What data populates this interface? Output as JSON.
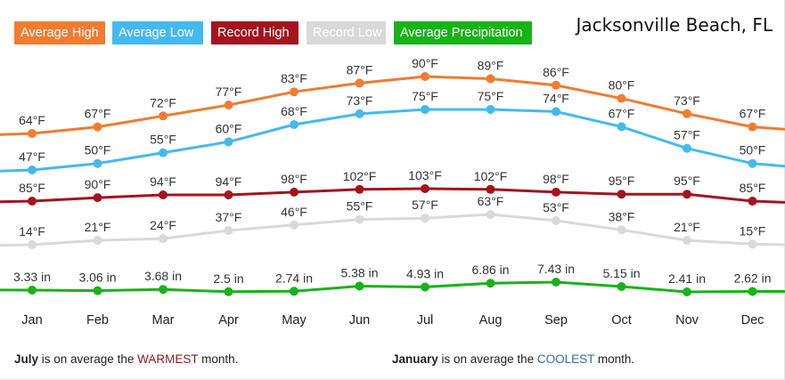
{
  "title": "Jacksonville Beach, FL",
  "legend": [
    {
      "label": "Average High",
      "color": "#ef7c32"
    },
    {
      "label": "Average Low",
      "color": "#45b9ee"
    },
    {
      "label": "Record High",
      "color": "#a3141e"
    },
    {
      "label": "Record Low",
      "color": "#d9d9d9"
    },
    {
      "label": "Average Precipitation",
      "color": "#18b318"
    }
  ],
  "chart_data": {
    "type": "line",
    "categories": [
      "Jan",
      "Feb",
      "Mar",
      "Apr",
      "May",
      "Jun",
      "Jul",
      "Aug",
      "Sep",
      "Oct",
      "Nov",
      "Dec"
    ],
    "series": [
      {
        "name": "Average High",
        "color": "#ef7c32",
        "unit": "°F",
        "values": [
          64,
          67,
          72,
          77,
          83,
          87,
          90,
          89,
          86,
          80,
          73,
          67
        ]
      },
      {
        "name": "Average Low",
        "color": "#45b9ee",
        "unit": "°F",
        "values": [
          47,
          50,
          55,
          60,
          68,
          73,
          75,
          75,
          74,
          67,
          57,
          50
        ]
      },
      {
        "name": "Record High",
        "color": "#a3141e",
        "unit": "°F",
        "values": [
          85,
          90,
          94,
          94,
          98,
          102,
          103,
          102,
          98,
          95,
          95,
          85
        ]
      },
      {
        "name": "Record Low",
        "color": "#d9d9d9",
        "unit": "°F",
        "values": [
          14,
          21,
          24,
          37,
          46,
          55,
          57,
          63,
          53,
          38,
          21,
          15
        ]
      },
      {
        "name": "Average Precipitation",
        "color": "#18b318",
        "unit": " in",
        "values": [
          3.33,
          3.06,
          3.68,
          2.5,
          2.74,
          5.38,
          4.93,
          6.86,
          7.43,
          5.15,
          2.41,
          2.62
        ]
      }
    ]
  },
  "footer": {
    "warmest_month": "July",
    "warmest_text_1": " is on average the ",
    "warmest_word": "WARMEST",
    "warmest_text_2": " month.",
    "coolest_month": "January",
    "coolest_text_1": " is on average the ",
    "coolest_word": "COOLEST",
    "coolest_text_2": " month."
  }
}
